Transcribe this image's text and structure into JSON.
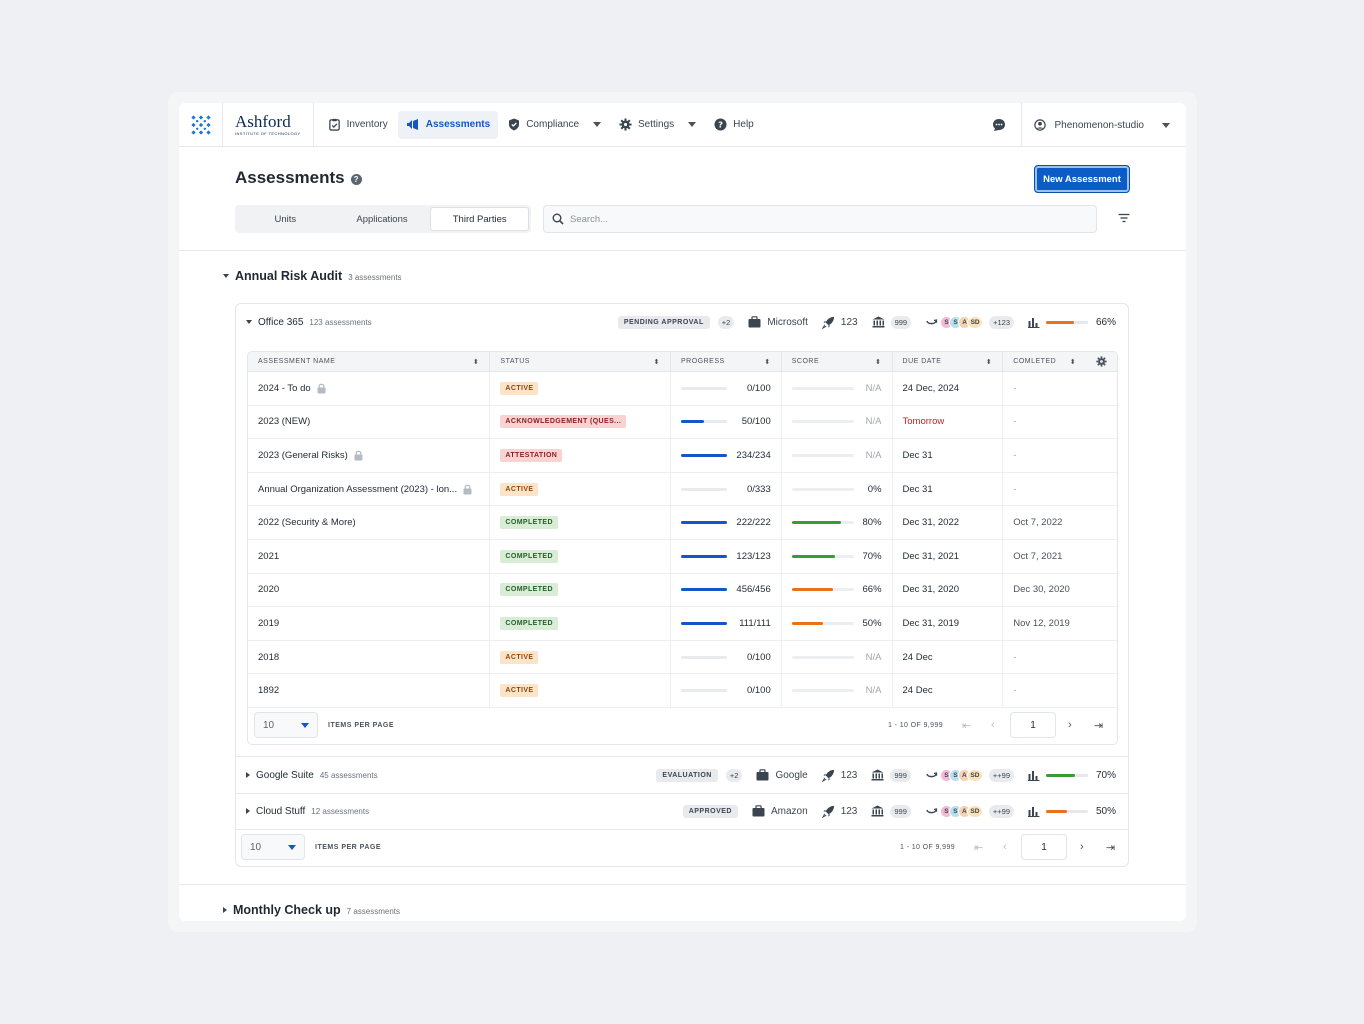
{
  "brand": {
    "name": "Ashford",
    "sub": "INSTITUTE OF TECHNOLOGY"
  },
  "nav": [
    {
      "label": "Inventory",
      "icon": "clipboard-icon"
    },
    {
      "label": "Assessments",
      "icon": "megaphone-icon",
      "active": true
    },
    {
      "label": "Compliance",
      "icon": "shield-icon",
      "dropdown": true
    },
    {
      "label": "Settings",
      "icon": "gear-icon",
      "dropdown": true
    },
    {
      "label": "Help",
      "icon": "question-icon"
    }
  ],
  "user": {
    "name": "Phenomenon-studio"
  },
  "page": {
    "title": "Assessments",
    "new_button": "New Assessment",
    "tabs": [
      "Units",
      "Applications",
      "Third Parties"
    ],
    "active_tab": "Third Parties",
    "search_placeholder": "Search..."
  },
  "groups": [
    {
      "name": "Annual Risk Audit",
      "count": "3 assessments",
      "expanded": true
    },
    {
      "name": "Monthly Check up",
      "count": "7 assessments",
      "expanded": false
    }
  ],
  "vendors": [
    {
      "name": "Office 365",
      "count": "123 assessments",
      "status": "PENDING APPROVAL",
      "plus": "+2",
      "company": "Microsoft",
      "rockets": "123",
      "banks": "999",
      "more_avatars": "+123",
      "score_pct": 66,
      "score_label": "66%",
      "bar_color": "#e8711a"
    },
    {
      "name": "Google Suite",
      "count": "45 assessments",
      "status": "EVALUATION",
      "plus": "+2",
      "company": "Google",
      "rockets": "123",
      "banks": "999",
      "more_avatars": "++99",
      "score_pct": 70,
      "score_label": "70%",
      "bar_color": "#3a9a33"
    },
    {
      "name": "Cloud Stuff",
      "count": "12 assessments",
      "status": "APPROVED",
      "plus": "",
      "company": "Amazon",
      "rockets": "123",
      "banks": "999",
      "more_avatars": "++99",
      "score_pct": 50,
      "score_label": "50%",
      "bar_color": "#e8711a"
    }
  ],
  "avatars": [
    {
      "letter": "S",
      "color": "#f5b8d6"
    },
    {
      "letter": "S",
      "color": "#b6e0ee"
    },
    {
      "letter": "A",
      "color": "#f3d3b3"
    },
    {
      "letter": "SD",
      "color": "#fbe1b7"
    }
  ],
  "table": {
    "columns": [
      "ASSESSMENT NAME",
      "STATUS",
      "PROGRESS",
      "SCORE",
      "DUE DATE",
      "COMLETED"
    ],
    "rows": [
      {
        "name": "2024 - To do",
        "lock": true,
        "status": "ACTIVE",
        "status_kind": "active",
        "progress": "0/100",
        "progress_pct": 0,
        "score": "N/A",
        "score_pct": 0,
        "score_color": "",
        "due": "24 Dec, 2024",
        "due_red": false,
        "completed": "-"
      },
      {
        "name": "2023 (NEW)",
        "lock": false,
        "status": "ACKNOWLEDGEMENT (QUES...",
        "status_kind": "ack",
        "progress": "50/100",
        "progress_pct": 50,
        "score": "N/A",
        "score_pct": 0,
        "score_color": "",
        "due": "Tomorrow",
        "due_red": true,
        "completed": "-"
      },
      {
        "name": "2023 (General Risks)",
        "lock": true,
        "status": "ATTESTATION",
        "status_kind": "att",
        "progress": "234/234",
        "progress_pct": 100,
        "score": "N/A",
        "score_pct": 0,
        "score_color": "",
        "due": "Dec 31",
        "due_red": false,
        "completed": "-"
      },
      {
        "name": "Annual Organization Assessment (2023) - lon...",
        "lock": true,
        "status": "ACTIVE",
        "status_kind": "active",
        "progress": "0/333",
        "progress_pct": 0,
        "score": "0%",
        "score_pct": 0,
        "score_color": "",
        "due": "Dec 31",
        "due_red": false,
        "completed": "-"
      },
      {
        "name": "2022 (Security & More)",
        "lock": false,
        "status": "COMPLETED",
        "status_kind": "done",
        "progress": "222/222",
        "progress_pct": 100,
        "score": "80%",
        "score_pct": 80,
        "score_color": "#3a9a33",
        "due": "Dec 31, 2022",
        "due_red": false,
        "completed": "Oct 7, 2022"
      },
      {
        "name": "2021",
        "lock": false,
        "status": "COMPLETED",
        "status_kind": "done",
        "progress": "123/123",
        "progress_pct": 100,
        "score": "70%",
        "score_pct": 70,
        "score_color": "#3a9a33",
        "due": "Dec 31, 2021",
        "due_red": false,
        "completed": "Oct 7, 2021"
      },
      {
        "name": "2020",
        "lock": false,
        "status": "COMPLETED",
        "status_kind": "done",
        "progress": "456/456",
        "progress_pct": 100,
        "score": "66%",
        "score_pct": 66,
        "score_color": "#e8711a",
        "due": "Dec 31, 2020",
        "due_red": false,
        "completed": "Dec 30, 2020"
      },
      {
        "name": "2019",
        "lock": false,
        "status": "COMPLETED",
        "status_kind": "done",
        "progress": "111/111",
        "progress_pct": 100,
        "score": "50%",
        "score_pct": 50,
        "score_color": "#e8711a",
        "due": "Dec 31, 2019",
        "due_red": false,
        "completed": "Nov 12, 2019"
      },
      {
        "name": "2018",
        "lock": false,
        "status": "ACTIVE",
        "status_kind": "active",
        "progress": "0/100",
        "progress_pct": 0,
        "score": "N/A",
        "score_pct": 0,
        "score_color": "",
        "due": "24 Dec",
        "due_red": false,
        "completed": "-"
      },
      {
        "name": "1892",
        "lock": false,
        "status": "ACTIVE",
        "status_kind": "active",
        "progress": "0/100",
        "progress_pct": 0,
        "score": "N/A",
        "score_pct": 0,
        "score_color": "",
        "due": "24 Dec",
        "due_red": false,
        "completed": "-"
      }
    ]
  },
  "pagination": {
    "per_page": "10",
    "label": "ITEMS PER PAGE",
    "range": "1 - 10 OF 9,999",
    "page": "1"
  },
  "colors": {
    "accent": "#0b5cc6",
    "progress": "#1456c8"
  }
}
